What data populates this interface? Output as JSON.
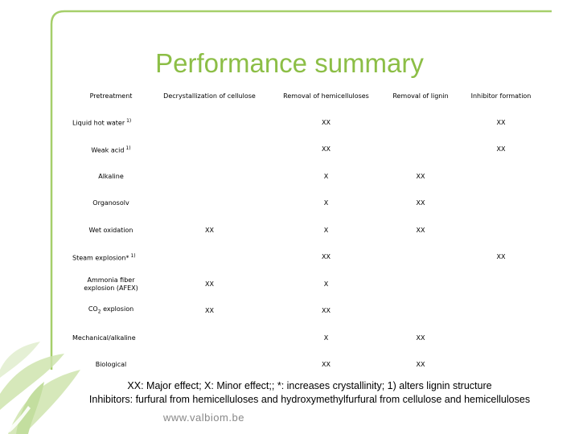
{
  "title": "Performance summary",
  "table": {
    "headers": [
      "Pretreatment",
      "Decrystallization of cellulose",
      "Removal of  hemicelluloses",
      "Removal of lignin",
      "Inhibitor formation"
    ],
    "rows": [
      {
        "name": "Liquid hot water",
        "sup": "1)",
        "align": "left",
        "cells": [
          "",
          "XX",
          "",
          "XX"
        ]
      },
      {
        "name": "Weak acid",
        "sup": "1)",
        "align": "center",
        "cells": [
          "",
          "XX",
          "",
          "XX"
        ]
      },
      {
        "name": "Alkaline",
        "sup": "",
        "align": "center",
        "cells": [
          "",
          "X",
          "XX",
          ""
        ]
      },
      {
        "name": "Organosolv",
        "sup": "",
        "align": "center",
        "cells": [
          "",
          "X",
          "XX",
          ""
        ]
      },
      {
        "name": "Wet oxidation",
        "sup": "",
        "align": "center",
        "cells": [
          "XX",
          "X",
          "XX",
          ""
        ]
      },
      {
        "name": "Steam explosion*",
        "sup": "1)",
        "align": "left",
        "cells": [
          "",
          "XX",
          "",
          "XX"
        ]
      },
      {
        "name": "Ammonia fiber explosion (AFEX)",
        "sup": "",
        "align": "center",
        "cells": [
          "XX",
          "X",
          "",
          ""
        ]
      },
      {
        "name": "CO",
        "sub": "2",
        "name_after": " explosion",
        "sup": "",
        "align": "center",
        "cells": [
          "XX",
          "XX",
          "",
          ""
        ]
      },
      {
        "name": "Mechanical/alkaline",
        "sup": "",
        "align": "left",
        "cells": [
          "",
          "X",
          "XX",
          ""
        ]
      },
      {
        "name": "Biological",
        "sup": "",
        "align": "center",
        "cells": [
          "",
          "XX",
          "XX",
          ""
        ]
      }
    ]
  },
  "footnotes": [
    "XX: Major effect; X: Minor effect;; *: increases crystallinity;  1) alters lignin structure",
    "Inhibitors: furfural from hemicelluloses and hydroxymethylfurfural from cellulose and hemicelluloses"
  ],
  "website": "www.valbiom.be",
  "colors": {
    "title": "#8cbe46",
    "frame": "#a6cf6a",
    "leaf": "#cfe5ae"
  }
}
